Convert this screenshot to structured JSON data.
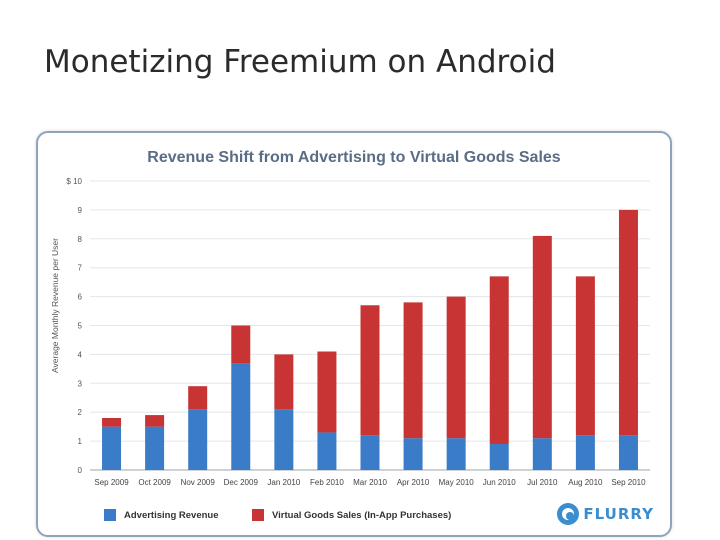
{
  "slide": {
    "title": "Monetizing Freemium on Android"
  },
  "chart_data": {
    "type": "bar",
    "stacked": true,
    "title": "Revenue Shift from Advertising to Virtual Goods Sales",
    "ylabel": "Average Monthly Revenue per User",
    "xlabel": "",
    "ylim": [
      0,
      10
    ],
    "ytick_labels": [
      "0",
      "1",
      "2",
      "3",
      "4",
      "5",
      "6",
      "7",
      "8",
      "9",
      "$ 10"
    ],
    "grid": true,
    "categories": [
      "Sep 2009",
      "Oct 2009",
      "Nov 2009",
      "Dec 2009",
      "Jan 2010",
      "Feb 2010",
      "Mar 2010",
      "Apr 2010",
      "May 2010",
      "Jun 2010",
      "Jul 2010",
      "Aug 2010",
      "Sep 2010"
    ],
    "series": [
      {
        "name": "Advertising Revenue",
        "color": "#3a7cc8",
        "values": [
          1.5,
          1.5,
          2.1,
          3.7,
          2.1,
          1.3,
          1.2,
          1.1,
          1.1,
          0.9,
          1.1,
          1.2,
          1.2
        ]
      },
      {
        "name": "Virtual Goods Sales (In-App Purchases)",
        "color": "#c83434",
        "values": [
          0.3,
          0.4,
          0.8,
          1.3,
          1.9,
          2.8,
          4.5,
          4.7,
          4.9,
          5.8,
          7.0,
          5.5,
          7.8
        ]
      }
    ],
    "legend_position": "bottom"
  },
  "logo": {
    "text": "FLURRY"
  }
}
